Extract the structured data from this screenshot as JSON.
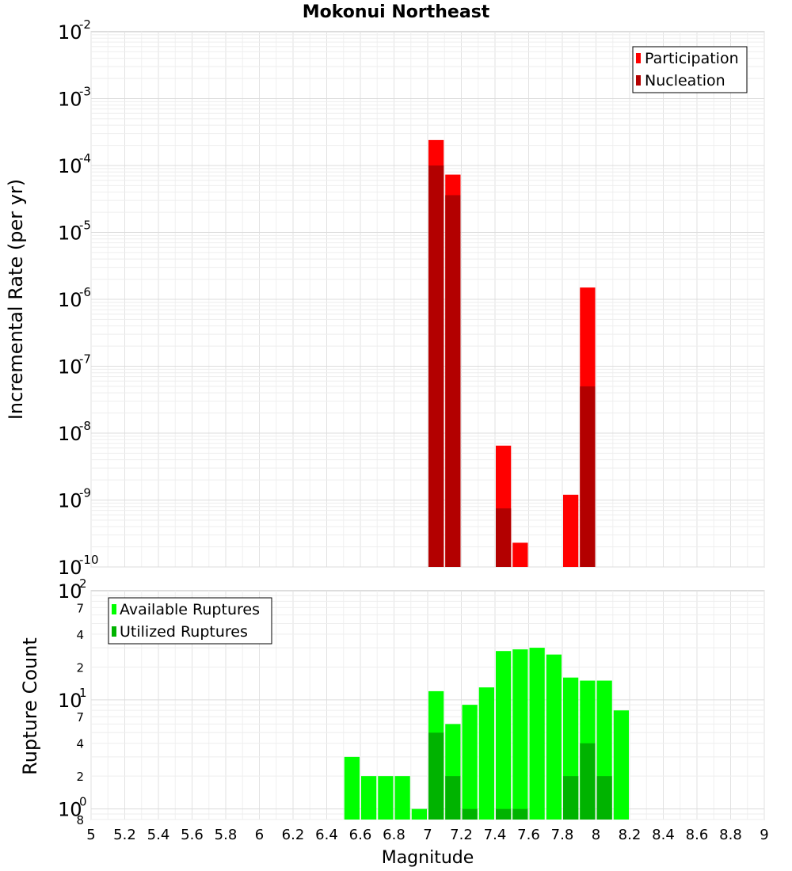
{
  "chart_data": [
    {
      "type": "bar",
      "title": "Mokonui Northeast",
      "xlabel": "Magnitude",
      "ylabel": "Incremental Rate (per yr)",
      "yscale": "log",
      "ylim": [
        1e-10,
        0.01
      ],
      "xlim": [
        5,
        9
      ],
      "x_ticks": [
        "5",
        "5.2",
        "5.4",
        "5.6",
        "5.8",
        "6",
        "6.2",
        "6.4",
        "6.6",
        "6.8",
        "7",
        "7.2",
        "7.4",
        "7.6",
        "7.8",
        "8",
        "8.2",
        "8.4",
        "8.6",
        "8.8",
        "9"
      ],
      "y_ticks": [
        {
          "base": "10",
          "exp": "-10",
          "value": 1e-10
        },
        {
          "base": "10",
          "exp": "-9",
          "value": 1e-09
        },
        {
          "base": "10",
          "exp": "-8",
          "value": 1e-08
        },
        {
          "base": "10",
          "exp": "-7",
          "value": 1e-07
        },
        {
          "base": "10",
          "exp": "-6",
          "value": 1e-06
        },
        {
          "base": "10",
          "exp": "-5",
          "value": 1e-05
        },
        {
          "base": "10",
          "exp": "-4",
          "value": 0.0001
        },
        {
          "base": "10",
          "exp": "-3",
          "value": 0.001
        },
        {
          "base": "10",
          "exp": "-2",
          "value": 0.01
        }
      ],
      "legend": [
        "Participation",
        "Nucleation"
      ],
      "legend_position": "top-right",
      "series": [
        {
          "name": "Participation",
          "color": "#ff0000",
          "points": [
            {
              "x": 7.05,
              "y": 0.00024
            },
            {
              "x": 7.15,
              "y": 7.3e-05
            },
            {
              "x": 7.45,
              "y": 6.5e-09
            },
            {
              "x": 7.55,
              "y": 2.3e-10
            },
            {
              "x": 7.85,
              "y": 1.2e-09
            },
            {
              "x": 7.95,
              "y": 1.5e-06
            }
          ]
        },
        {
          "name": "Nucleation",
          "color": "#b30000",
          "points": [
            {
              "x": 7.05,
              "y": 0.0001
            },
            {
              "x": 7.15,
              "y": 3.6e-05
            },
            {
              "x": 7.45,
              "y": 7.5e-10
            },
            {
              "x": 7.95,
              "y": 5e-08
            }
          ]
        }
      ]
    },
    {
      "type": "bar",
      "xlabel": "Magnitude",
      "ylabel": "Rupture Count",
      "yscale": "log",
      "ylim": [
        0.8,
        100
      ],
      "xlim": [
        5,
        9
      ],
      "y_ticks": [
        {
          "base": "10",
          "exp": "0",
          "value": 1
        },
        {
          "base": "10",
          "exp": "1",
          "value": 10
        },
        {
          "base": "10",
          "exp": "2",
          "value": 100
        }
      ],
      "y_minor_ticks": [
        {
          "label": "8",
          "value": 0.8
        },
        {
          "label": "2",
          "value": 2
        },
        {
          "label": "4",
          "value": 4
        },
        {
          "label": "7",
          "value": 7
        },
        {
          "label": "2",
          "value": 20
        },
        {
          "label": "4",
          "value": 40
        },
        {
          "label": "7",
          "value": 70
        }
      ],
      "legend": [
        "Available Ruptures",
        "Utilized Ruptures"
      ],
      "legend_position": "top-left",
      "series": [
        {
          "name": "Available Ruptures",
          "color": "#00ff00",
          "points": [
            {
              "x": 6.55,
              "y": 3
            },
            {
              "x": 6.65,
              "y": 2
            },
            {
              "x": 6.75,
              "y": 2
            },
            {
              "x": 6.85,
              "y": 2
            },
            {
              "x": 6.95,
              "y": 1
            },
            {
              "x": 7.05,
              "y": 12
            },
            {
              "x": 7.15,
              "y": 6
            },
            {
              "x": 7.25,
              "y": 9
            },
            {
              "x": 7.35,
              "y": 13
            },
            {
              "x": 7.45,
              "y": 28
            },
            {
              "x": 7.55,
              "y": 29
            },
            {
              "x": 7.65,
              "y": 30
            },
            {
              "x": 7.75,
              "y": 26
            },
            {
              "x": 7.85,
              "y": 16
            },
            {
              "x": 7.95,
              "y": 15
            },
            {
              "x": 8.05,
              "y": 15
            },
            {
              "x": 8.15,
              "y": 8
            }
          ]
        },
        {
          "name": "Utilized Ruptures",
          "color": "#00b300",
          "points": [
            {
              "x": 7.05,
              "y": 5
            },
            {
              "x": 7.15,
              "y": 2
            },
            {
              "x": 7.25,
              "y": 1
            },
            {
              "x": 7.45,
              "y": 1
            },
            {
              "x": 7.55,
              "y": 1
            },
            {
              "x": 7.85,
              "y": 2
            },
            {
              "x": 7.95,
              "y": 4
            },
            {
              "x": 8.05,
              "y": 2
            }
          ]
        }
      ]
    }
  ]
}
